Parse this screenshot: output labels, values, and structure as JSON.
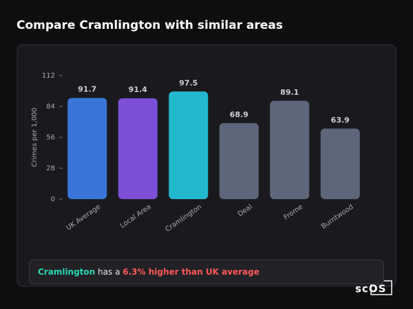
{
  "chart_data": {
    "type": "bar",
    "title": "Compare Cramlington with similar areas",
    "y_label": "Crimes per 1,000",
    "categories": [
      "UK Average",
      "Local Area",
      "Cramlington",
      "Deal",
      "Frome",
      "Burntwood"
    ],
    "values": [
      91.7,
      91.4,
      97.5,
      68.9,
      89.1,
      63.9
    ],
    "colors": [
      "#3a76d8",
      "#7b50d6",
      "#22b9cf",
      "#5e6779",
      "#5e6779",
      "#5e6779"
    ],
    "ylim": [
      0,
      112
    ],
    "yticks": [
      0,
      28,
      56,
      84,
      112
    ],
    "grid": false
  },
  "summary": {
    "area": "Cramlington",
    "text": "has a",
    "comparison": "6.3% higher than UK average"
  },
  "logo": "scOS"
}
